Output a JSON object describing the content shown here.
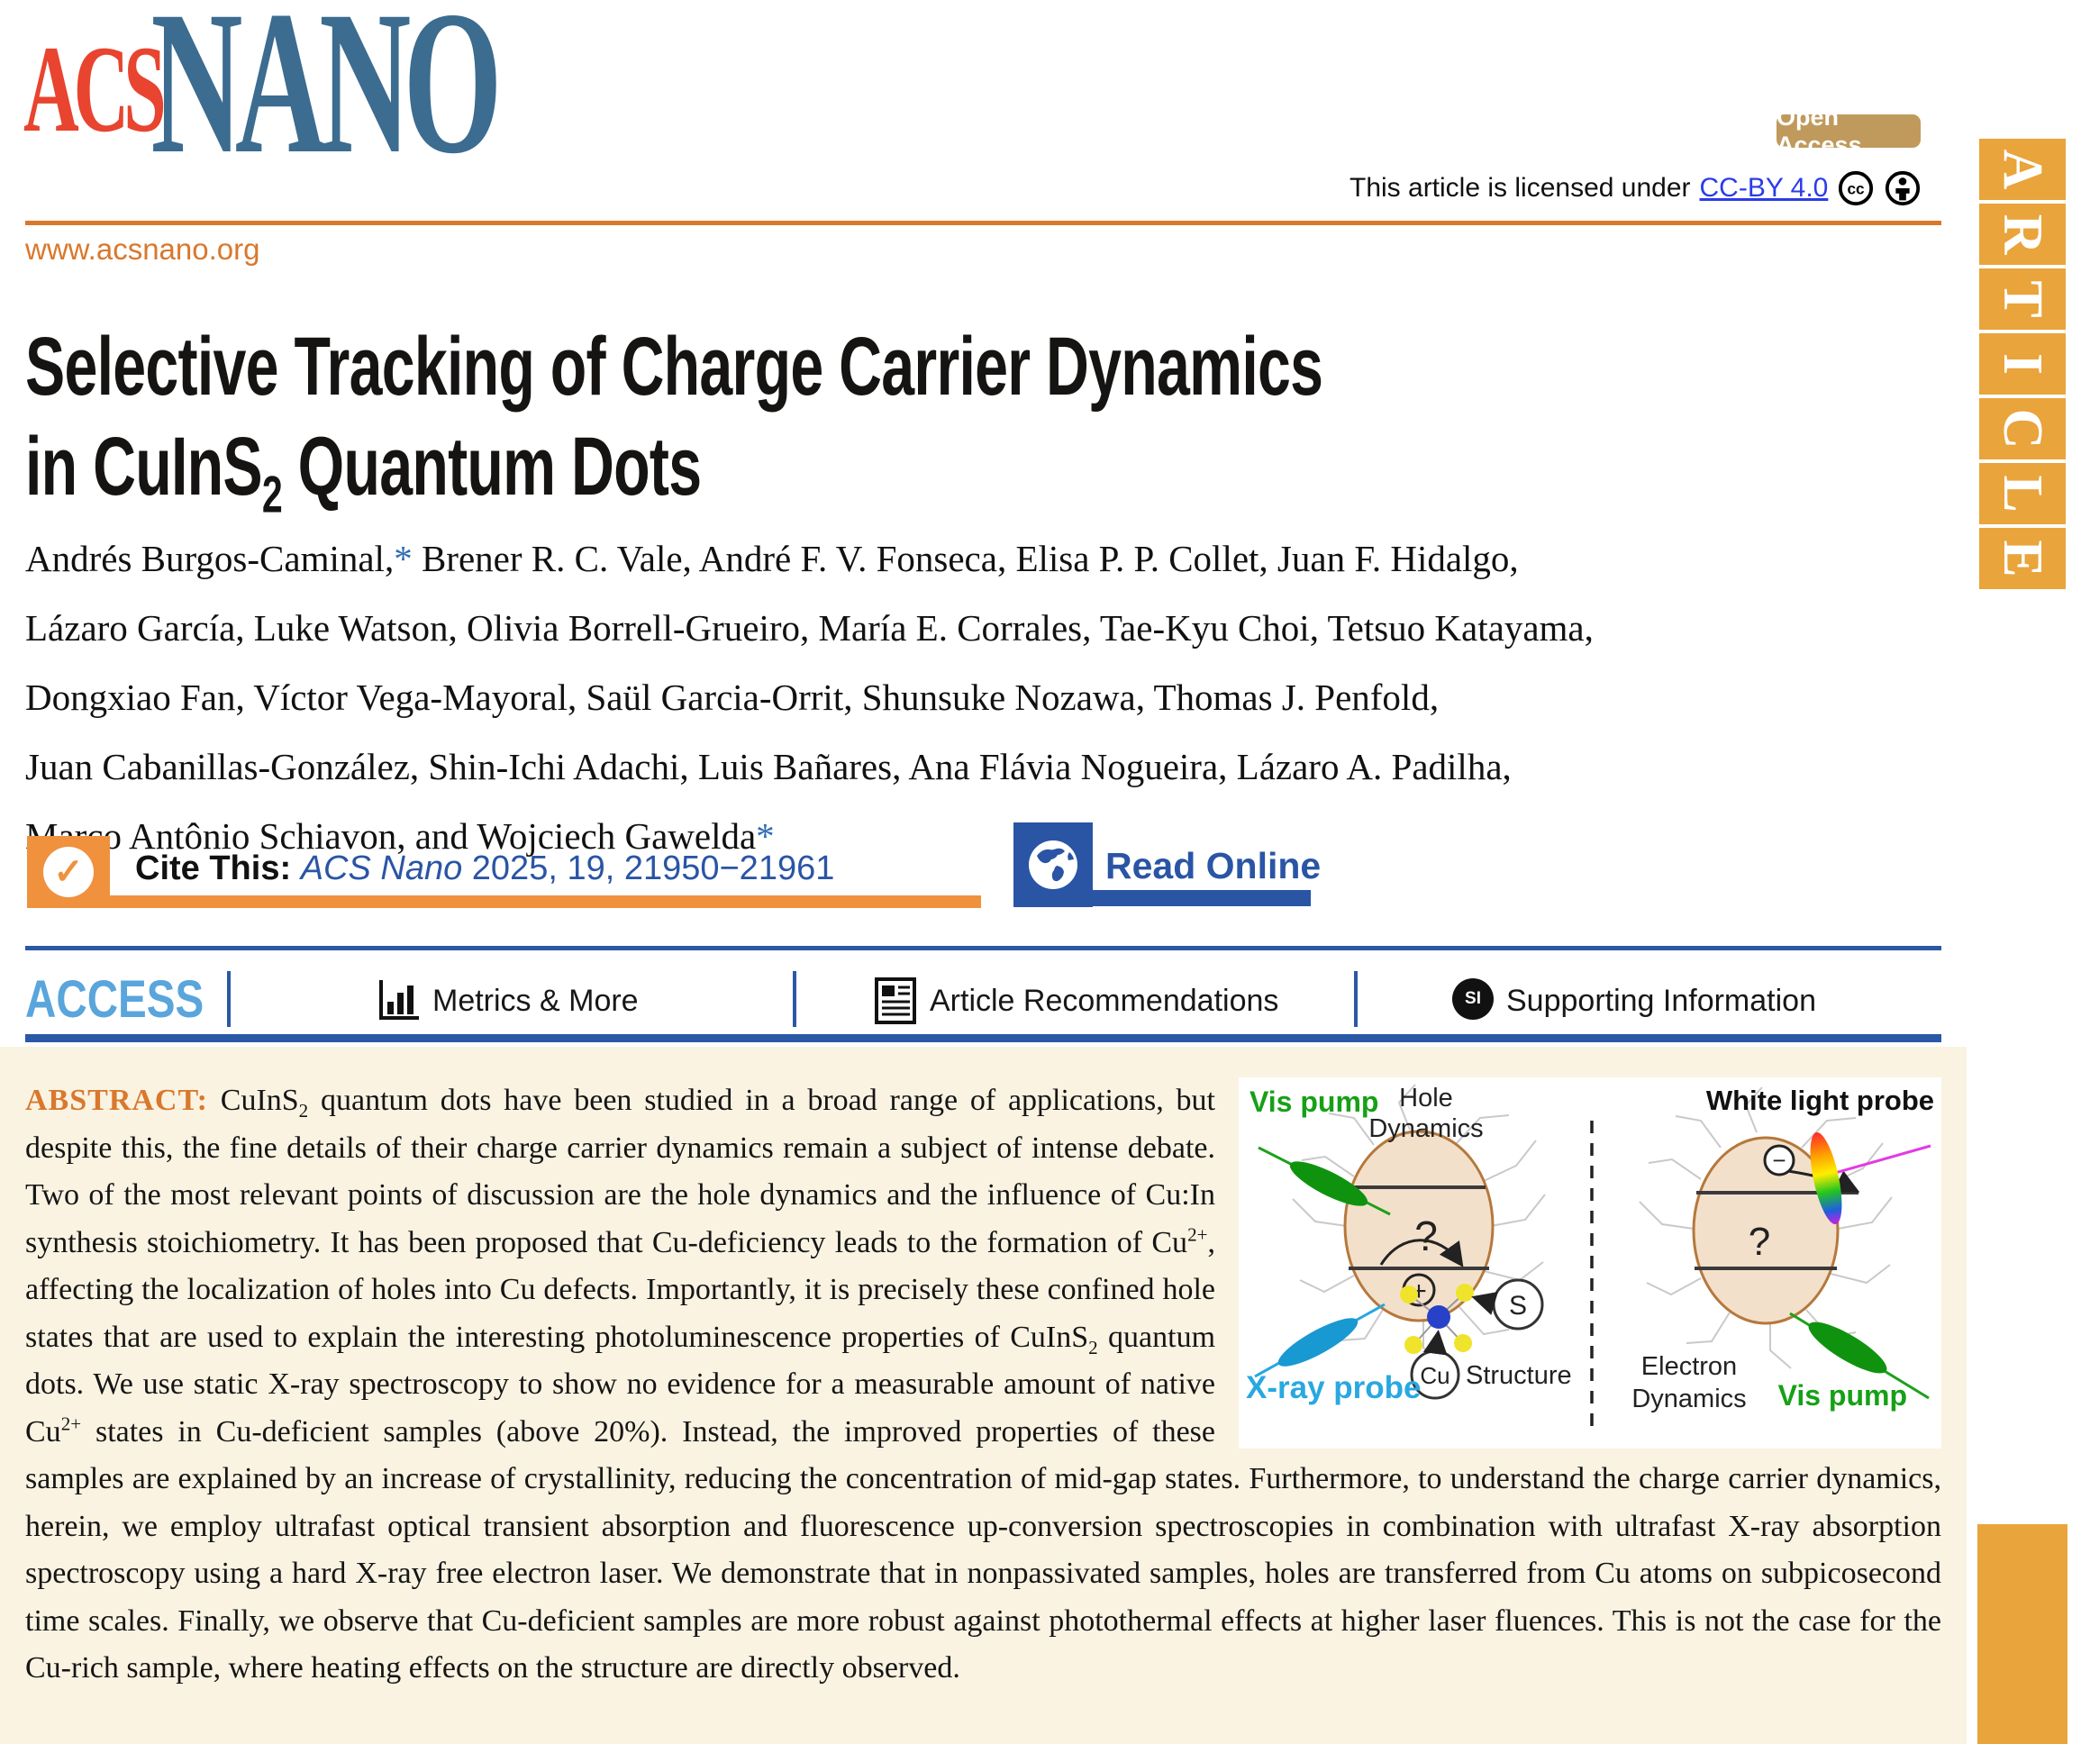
{
  "header": {
    "logo_acs": "ACS",
    "logo_nano": "NANO",
    "open_access": "Open Access",
    "license_prefix": "This article is licensed under",
    "license_link": "CC-BY 4.0",
    "site": "www.acsnano.org",
    "article_banner": [
      "A",
      "R",
      "T",
      "I",
      "C",
      "L",
      "E"
    ]
  },
  "icons": {
    "cc": "cc",
    "checkmark": "✓",
    "si": "SI"
  },
  "title": {
    "line1": "Selective Tracking of Charge Carrier Dynamics",
    "line2_pre": "in CuInS",
    "line2_sub": "2",
    "line2_post": " Quantum Dots"
  },
  "authors": {
    "line1_name": "Andrés Burgos-Caminal,",
    "star1": "*",
    "line1_rest": " Brener R. C. Vale, André F. V. Fonseca, Elisa P. P. Collet, Juan F. Hidalgo,",
    "line2": "Lázaro García, Luke Watson, Olivia Borrell-Grueiro, María E. Corrales, Tae-Kyu Choi, Tetsuo Katayama,",
    "line3": "Dongxiao Fan, Víctor Vega-Mayoral, Saül Garcia-Orrit, Shunsuke Nozawa, Thomas J. Penfold,",
    "line4": "Juan Cabanillas-González, Shin-Ichi Adachi, Luis Bañares, Ana Flávia Nogueira, Lázaro A. Padilha,",
    "line5": "Marco Antônio Schiavon, and Wojciech Gawelda",
    "star2": "*"
  },
  "cite": {
    "label": "Cite This:",
    "journal": "ACS Nano",
    "ref_rest": " 2025, 19, 21950−21961",
    "read_online": "Read Online"
  },
  "access_bar": {
    "access": "ACCESS",
    "items": [
      "Metrics & More",
      "Article Recommendations",
      "Supporting Information"
    ]
  },
  "abstract": {
    "label": "ABSTRACT:",
    "segments": [
      {
        "t": " CuInS",
        "s": "n"
      },
      {
        "t": "2",
        "s": "sub"
      },
      {
        "t": " quantum dots have been studied in a broad range of applications, but despite this, the fine details of their charge carrier dynamics remain a subject of intense debate. Two of the most relevant points of discussion are the hole dynamics and the influence of Cu:In synthesis stoichiometry. It has been proposed that Cu-deficiency leads to the formation of Cu",
        "s": "n"
      },
      {
        "t": "2+",
        "s": "sup"
      },
      {
        "t": ", affecting the localization of holes into Cu defects. Importantly, it is precisely these confined hole states that are used to explain the interesting photoluminescence properties of CuInS",
        "s": "n"
      },
      {
        "t": "2",
        "s": "sub"
      },
      {
        "t": " quantum dots. We use static X-ray spectroscopy to show no evidence for a measurable amount of native Cu",
        "s": "n"
      },
      {
        "t": "2+",
        "s": "sup"
      },
      {
        "t": " states in Cu-deficient samples (above 20%). Instead, the improved properties of these samples are explained by an increase of crystallinity, reducing the concentration of mid-gap states. Furthermore, to understand the charge carrier dynamics, herein, we employ ultrafast optical transient absorption and fluorescence up-conversion spectroscopies in combination with ultrafast X-ray absorption spectroscopy using a hard X-ray free electron laser. We demonstrate that in nonpassivated samples, holes are transferred from Cu atoms on subpicosecond time scales. Finally, we observe that Cu-deficient samples are more robust against photothermal effects at higher laser fluences. This is not the case for the Cu-rich sample, where heating effects on the structure are directly observed.",
        "s": "n"
      }
    ]
  },
  "figure": {
    "vis_pump_top": "Vis pump",
    "hole_line1": "Hole",
    "hole_line2": "Dynamics",
    "white_light_probe": "White light probe",
    "xray_probe": "X-ray probe",
    "structure": "Structure",
    "electron_line1": "Electron",
    "electron_line2": "Dynamics",
    "vis_pump_bottom": "Vis pump",
    "s_atom": "S",
    "cu_atom": "Cu",
    "question_mark": "?",
    "plus_sign": "+",
    "minus_sign": "−"
  },
  "colors": {
    "rule_orange": "#d9782d",
    "cite_orange": "#f0913e",
    "banner_orange": "#e9a43b",
    "brand_blue": "#2a55a5",
    "access_light_blue": "#59a5dc",
    "rule_blue": "#2b57a7",
    "link_blue": "#2b3ce8",
    "logo_red": "#e8442f",
    "logo_blue": "#3c6c90",
    "badge_tan": "#c09a5c",
    "abstract_cream": "#faf3e2",
    "pump_green": "#16a016",
    "xray_light_blue": "#29a8e0"
  }
}
